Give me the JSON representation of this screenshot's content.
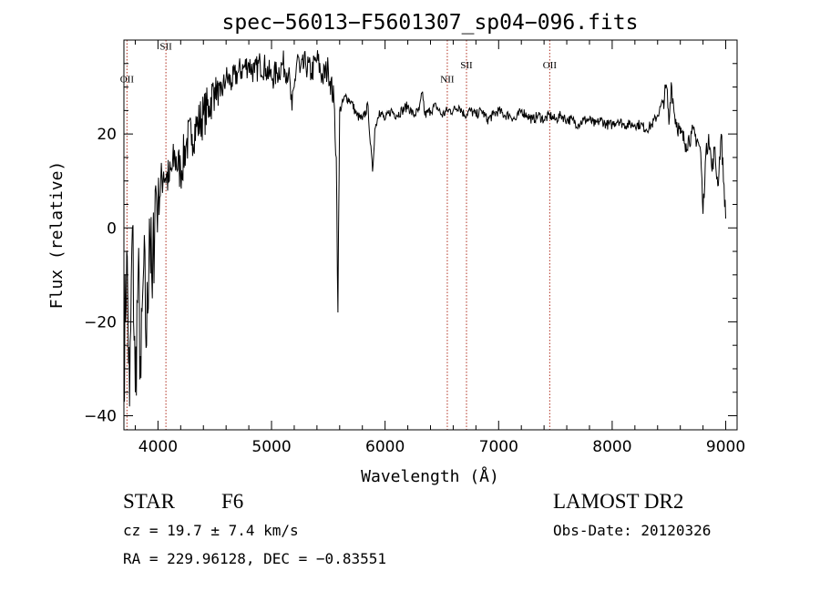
{
  "chart_data": {
    "type": "line",
    "title": "spec−56013−F5601307_sp04−096.fits",
    "xlabel": "Wavelength (Å)",
    "ylabel": "Flux (relative)",
    "xlim": [
      3700,
      9100
    ],
    "ylim": [
      -43,
      40
    ],
    "x_ticks": [
      4000,
      5000,
      6000,
      7000,
      8000,
      9000
    ],
    "y_ticks": [
      -40,
      -20,
      0,
      20
    ],
    "y_tick_labels": [
      "−40",
      "−20",
      "0",
      "20"
    ],
    "line_color": "#000000",
    "marker_color": "#b03020",
    "lines": [
      {
        "label": "OII",
        "x": 3727,
        "label_y": 31
      },
      {
        "label": "SII",
        "x": 4070,
        "label_y": 38
      },
      {
        "label": "NII",
        "x": 6548,
        "label_y": 31
      },
      {
        "label": "SII",
        "x": 6717,
        "label_y": 34
      },
      {
        "label": "OII",
        "x": 7450,
        "label_y": 34
      }
    ],
    "series": [
      {
        "x": [
          3700,
          3725,
          3750,
          3775,
          3800,
          3825,
          3850,
          3875,
          3900,
          3925,
          3950,
          3975,
          4000,
          4050,
          4100,
          4150,
          4200,
          4250,
          4300,
          4350,
          4400,
          4450,
          4500,
          4550,
          4600,
          4650,
          4700,
          4750,
          4800,
          4850,
          4900,
          4950,
          5000,
          5050,
          5100,
          5150,
          5180,
          5200,
          5230,
          5250,
          5300,
          5350,
          5400,
          5450,
          5500,
          5550,
          5570,
          5585,
          5600,
          5650,
          5700,
          5750,
          5800,
          5850,
          5870,
          5890,
          5910,
          5950,
          6000,
          6050,
          6100,
          6150,
          6200,
          6250,
          6300,
          6330,
          6350,
          6400,
          6450,
          6500,
          6550,
          6600,
          6650,
          6700,
          6750,
          6800,
          6850,
          6900,
          6950,
          7000,
          7050,
          7100,
          7150,
          7200,
          7250,
          7300,
          7350,
          7400,
          7450,
          7500,
          7550,
          7600,
          7650,
          7700,
          7750,
          7800,
          7850,
          7900,
          7950,
          8000,
          8050,
          8100,
          8150,
          8200,
          8250,
          8300,
          8350,
          8400,
          8450,
          8480,
          8500,
          8520,
          8550,
          8600,
          8650,
          8700,
          8750,
          8780,
          8800,
          8820,
          8850,
          8880,
          8900,
          8930,
          8960,
          9000
        ],
        "values": [
          -30,
          -5,
          -38,
          0,
          -35,
          -10,
          -32,
          -8,
          -25,
          2,
          -15,
          8,
          6,
          12,
          10,
          15,
          12,
          18,
          20,
          22,
          24,
          26,
          30,
          28,
          32,
          31,
          33,
          34,
          35,
          33,
          35,
          34,
          32,
          33,
          35,
          33,
          25,
          30,
          37,
          33,
          35,
          33,
          36,
          32,
          34,
          27,
          15,
          -18,
          25,
          28,
          27,
          24,
          23,
          26,
          18,
          12,
          21,
          25,
          23,
          25,
          24,
          25,
          26,
          24,
          25,
          29,
          24,
          25,
          26,
          24,
          25,
          25,
          26,
          24,
          25,
          24,
          25,
          23,
          24,
          25,
          24,
          24,
          23,
          25,
          24,
          23,
          24,
          23,
          24,
          23,
          24,
          23,
          23,
          22,
          23,
          23,
          22,
          23,
          22,
          22,
          23,
          22,
          22,
          22,
          22,
          21,
          22,
          24,
          27,
          30,
          22,
          31,
          24,
          20,
          18,
          20,
          19,
          16,
          3,
          14,
          20,
          12,
          17,
          9,
          20,
          2
        ]
      }
    ]
  },
  "info": {
    "object_class": "STAR",
    "subclass": "F6",
    "survey": "LAMOST DR2",
    "redshift": "cz = 19.7 ± 7.4 km/s",
    "obs_date": "Obs-Date: 20120326",
    "coords": "RA = 229.96128, DEC =  −0.83551"
  }
}
